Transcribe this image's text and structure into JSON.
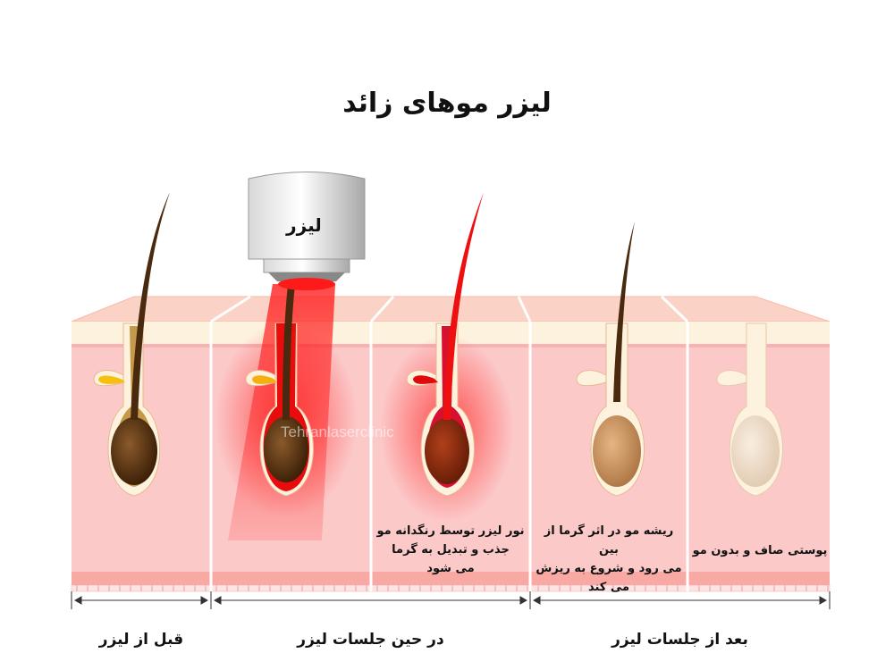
{
  "title": "لیزر موهای زائد",
  "device_label": "لیزر",
  "watermark": "Tehranlaserclinic",
  "captions": [
    {
      "line1": "نور لیزر توسط رنگدانه مو",
      "line2": "جذب و تبدیل به گرما",
      "line3": "می شود"
    },
    {
      "line1": "ریشه مو در اثر گرما از بین",
      "line2": "می رود و شروع به ریزش",
      "line3": "می کند"
    },
    {
      "line1": "پوستی صاف و بدون مو"
    }
  ],
  "stages": [
    "قبل از لیزر",
    "در حین جلسات لیزر",
    "بعد از جلسات لیزر"
  ],
  "colors": {
    "skin": "#fcc9c9",
    "epidermis": "#fdf2dd",
    "laser_red": "#ff1a1a",
    "hair_dark": "#4a2a0e"
  }
}
